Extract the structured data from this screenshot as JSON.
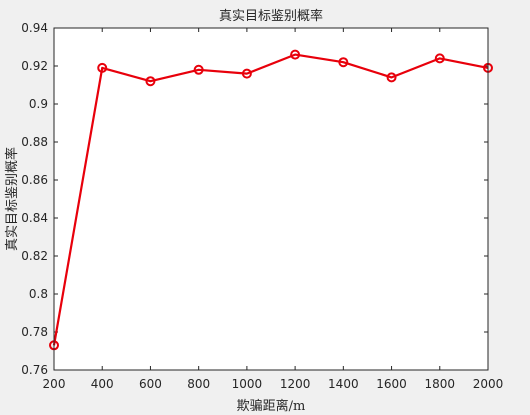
{
  "chart_data": {
    "type": "line",
    "title": "真实目标鉴别概率",
    "xlabel": "欺骗距离/m",
    "ylabel": "真实目标鉴别概率",
    "xlim": [
      200,
      2000
    ],
    "ylim": [
      0.76,
      0.94
    ],
    "xticks": [
      200,
      400,
      600,
      800,
      1000,
      1200,
      1400,
      1600,
      1800,
      2000
    ],
    "yticks": [
      0.76,
      0.78,
      0.8,
      0.82,
      0.84,
      0.86,
      0.88,
      0.9,
      0.92,
      0.94
    ],
    "ytick_labels": [
      "0.76",
      "0.78",
      "0.8",
      "0.82",
      "0.84",
      "0.86",
      "0.88",
      "0.9",
      "0.92",
      "0.94"
    ],
    "grid": false,
    "series": [
      {
        "color": "#e8000b",
        "marker": "circle",
        "x": [
          200,
          400,
          600,
          800,
          1000,
          1200,
          1400,
          1600,
          1800,
          2000
        ],
        "y": [
          0.773,
          0.919,
          0.912,
          0.918,
          0.916,
          0.926,
          0.922,
          0.914,
          0.924,
          0.919
        ]
      }
    ]
  }
}
